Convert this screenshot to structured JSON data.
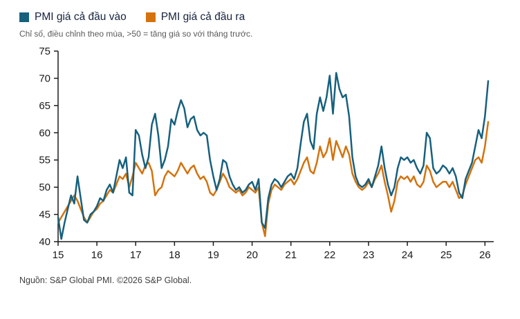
{
  "legend": {
    "items": [
      {
        "label": "PMI giá cả đầu vào",
        "color": "#16607E"
      },
      {
        "label": "PMI giá cả đầu ra",
        "color": "#D4720C"
      }
    ]
  },
  "subtitle": "Chỉ số, điều chỉnh theo mùa, >50 = tăng giá so với tháng trước.",
  "footer": "Nguồn: S&P Global PMI. ©2026 S&P Global.",
  "chart_data": {
    "type": "line",
    "x_start": "2015-01",
    "x_end": "2026-02",
    "x_frequency": "monthly",
    "x_tick_labels": [
      "15",
      "16",
      "17",
      "18",
      "19",
      "20",
      "21",
      "22",
      "23",
      "24",
      "25",
      "26"
    ],
    "ylim": [
      40,
      75
    ],
    "y_ticks": [
      40,
      45,
      50,
      55,
      60,
      65,
      70,
      75
    ],
    "grid": false,
    "legend_position": "top-left",
    "series": [
      {
        "name": "PMI giá cả đầu vào",
        "color": "#16607E",
        "values": [
          44.5,
          40.5,
          43.5,
          46.0,
          48.5,
          47.0,
          52.0,
          48.0,
          44.0,
          43.5,
          45.0,
          45.5,
          46.5,
          48.0,
          47.5,
          49.5,
          50.5,
          49.0,
          52.0,
          55.0,
          53.5,
          55.5,
          49.0,
          48.5,
          60.5,
          59.5,
          56.0,
          53.5,
          55.5,
          61.5,
          63.5,
          59.5,
          53.5,
          55.0,
          57.5,
          62.5,
          61.5,
          64.0,
          66.0,
          64.5,
          61.0,
          62.5,
          63.0,
          60.5,
          59.5,
          60.0,
          59.5,
          55.0,
          52.0,
          49.5,
          51.5,
          55.0,
          54.5,
          52.0,
          50.5,
          49.5,
          50.0,
          49.0,
          49.5,
          50.5,
          51.0,
          49.5,
          51.5,
          43.5,
          42.5,
          48.0,
          50.5,
          51.5,
          51.0,
          50.0,
          51.0,
          52.0,
          52.5,
          51.5,
          53.5,
          58.0,
          62.0,
          63.5,
          58.5,
          57.0,
          63.5,
          66.5,
          64.0,
          66.5,
          70.5,
          63.5,
          71.0,
          68.0,
          66.5,
          67.0,
          63.0,
          55.5,
          52.0,
          50.5,
          50.0,
          50.5,
          51.5,
          50.0,
          52.0,
          54.0,
          57.5,
          53.5,
          50.5,
          48.5,
          50.0,
          53.5,
          55.5,
          55.0,
          55.5,
          54.5,
          55.0,
          53.5,
          52.5,
          54.0,
          60.0,
          59.0,
          53.5,
          52.5,
          53.0,
          54.0,
          53.5,
          52.5,
          53.5,
          52.0,
          49.0,
          48.0,
          51.5,
          53.0,
          54.5,
          57.5,
          60.5,
          59.0,
          63.0,
          69.5
        ]
      },
      {
        "name": "PMI giá cả đầu ra",
        "color": "#D4720C",
        "values": [
          43.5,
          44.5,
          45.5,
          46.5,
          47.5,
          48.5,
          47.5,
          46.0,
          44.5,
          43.5,
          44.5,
          45.5,
          46.0,
          47.0,
          47.5,
          48.5,
          49.5,
          49.0,
          50.5,
          52.0,
          51.5,
          52.5,
          50.0,
          52.0,
          54.5,
          53.5,
          52.5,
          54.0,
          54.5,
          53.0,
          48.5,
          49.5,
          50.0,
          52.0,
          53.0,
          52.5,
          52.0,
          53.0,
          54.5,
          53.5,
          52.5,
          53.5,
          54.0,
          52.5,
          51.5,
          52.0,
          51.0,
          49.0,
          48.5,
          49.5,
          51.0,
          52.5,
          51.5,
          50.0,
          49.5,
          49.0,
          49.5,
          48.5,
          49.0,
          50.0,
          49.5,
          49.0,
          50.0,
          43.5,
          41.0,
          47.0,
          49.5,
          50.5,
          50.0,
          49.5,
          50.5,
          51.0,
          51.5,
          50.5,
          51.5,
          53.0,
          54.5,
          55.5,
          53.0,
          52.5,
          54.5,
          57.5,
          55.5,
          56.5,
          59.0,
          55.0,
          58.5,
          57.0,
          55.5,
          57.5,
          56.0,
          52.5,
          51.0,
          50.0,
          49.5,
          50.0,
          51.0,
          50.0,
          51.5,
          52.5,
          54.0,
          51.0,
          48.5,
          45.5,
          47.5,
          51.0,
          52.0,
          51.5,
          52.0,
          51.0,
          52.0,
          50.5,
          50.0,
          51.0,
          54.0,
          53.0,
          51.0,
          50.0,
          50.5,
          51.0,
          51.0,
          50.0,
          51.0,
          49.5,
          48.0,
          48.5,
          50.5,
          52.0,
          53.5,
          55.0,
          55.5,
          54.5,
          57.5,
          62.0
        ]
      }
    ]
  }
}
